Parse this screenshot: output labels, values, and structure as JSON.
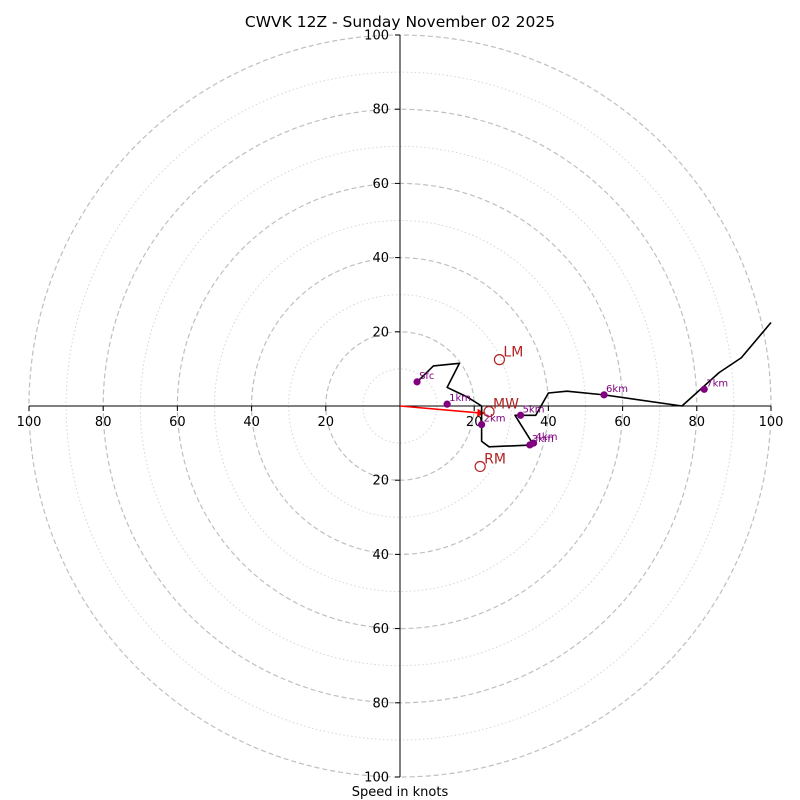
{
  "chart_data": {
    "type": "hodograph",
    "title": "CWVK 12Z - Sunday November 02 2025",
    "xlabel": "Speed in knots",
    "range": [
      -100,
      100
    ],
    "rings_major": [
      20,
      40,
      60,
      80,
      100
    ],
    "rings_minor": [
      10,
      30,
      50,
      70,
      90
    ],
    "ticks": {
      "x": [
        {
          "v": -100,
          "label": "100"
        },
        {
          "v": -80,
          "label": "80"
        },
        {
          "v": -60,
          "label": "60"
        },
        {
          "v": -40,
          "label": "40"
        },
        {
          "v": -20,
          "label": "20"
        },
        {
          "v": 20,
          "label": "20"
        },
        {
          "v": 40,
          "label": "40"
        },
        {
          "v": 60,
          "label": "60"
        },
        {
          "v": 80,
          "label": "80"
        },
        {
          "v": 100,
          "label": "100"
        }
      ],
      "y": [
        {
          "v": 100,
          "label": "100"
        },
        {
          "v": 80,
          "label": "80"
        },
        {
          "v": 60,
          "label": "60"
        },
        {
          "v": 40,
          "label": "40"
        },
        {
          "v": 20,
          "label": "20"
        },
        {
          "v": -20,
          "label": "20"
        },
        {
          "v": -40,
          "label": "40"
        },
        {
          "v": -60,
          "label": "60"
        },
        {
          "v": -80,
          "label": "80"
        },
        {
          "v": -100,
          "label": "100"
        }
      ]
    },
    "trace": [
      [
        4.6,
        6.5
      ],
      [
        9,
        10.8
      ],
      [
        16,
        11.5
      ],
      [
        12.7,
        5
      ],
      [
        18,
        2.5
      ],
      [
        22,
        0
      ],
      [
        22,
        -7.5
      ],
      [
        22,
        -9.5
      ],
      [
        24,
        -11
      ],
      [
        36,
        -10.5
      ],
      [
        31,
        -2.5
      ],
      [
        32.5,
        -2.5
      ],
      [
        36.6,
        -2.5
      ],
      [
        40,
        3.5
      ],
      [
        45,
        4
      ],
      [
        55,
        3
      ],
      [
        76,
        0
      ],
      [
        86,
        9
      ],
      [
        92,
        13
      ],
      [
        100,
        22.5
      ]
    ],
    "height_markers": [
      {
        "label": "Sfc",
        "u": 4.6,
        "v": 6.5
      },
      {
        "label": "1km",
        "u": 12.7,
        "v": 0.5
      },
      {
        "label": "2km",
        "u": 22,
        "v": -5
      },
      {
        "label": "3km",
        "u": 35,
        "v": -10.5
      },
      {
        "label": "4km",
        "u": 36,
        "v": -10
      },
      {
        "label": "5km",
        "u": 32.5,
        "v": -2.5
      },
      {
        "label": "6km",
        "u": 55,
        "v": 3
      },
      {
        "label": "7km",
        "u": 82,
        "v": 4.5
      }
    ],
    "storm_motion": [
      {
        "label": "LM",
        "u": 26.8,
        "v": 12.5
      },
      {
        "label": "MW",
        "u": 24,
        "v": -1.5
      },
      {
        "label": "RM",
        "u": 21.6,
        "v": -16.3
      }
    ],
    "shear_vector": {
      "from": [
        0,
        0
      ],
      "to": [
        23,
        -2
      ]
    },
    "colors": {
      "trace": "#000000",
      "height_marker": "#800080",
      "storm_motion": "#b22222",
      "shear_vector": "#ff0000",
      "ring_major": "#bfbfbf",
      "ring_minor": "#d6d6d6"
    }
  }
}
